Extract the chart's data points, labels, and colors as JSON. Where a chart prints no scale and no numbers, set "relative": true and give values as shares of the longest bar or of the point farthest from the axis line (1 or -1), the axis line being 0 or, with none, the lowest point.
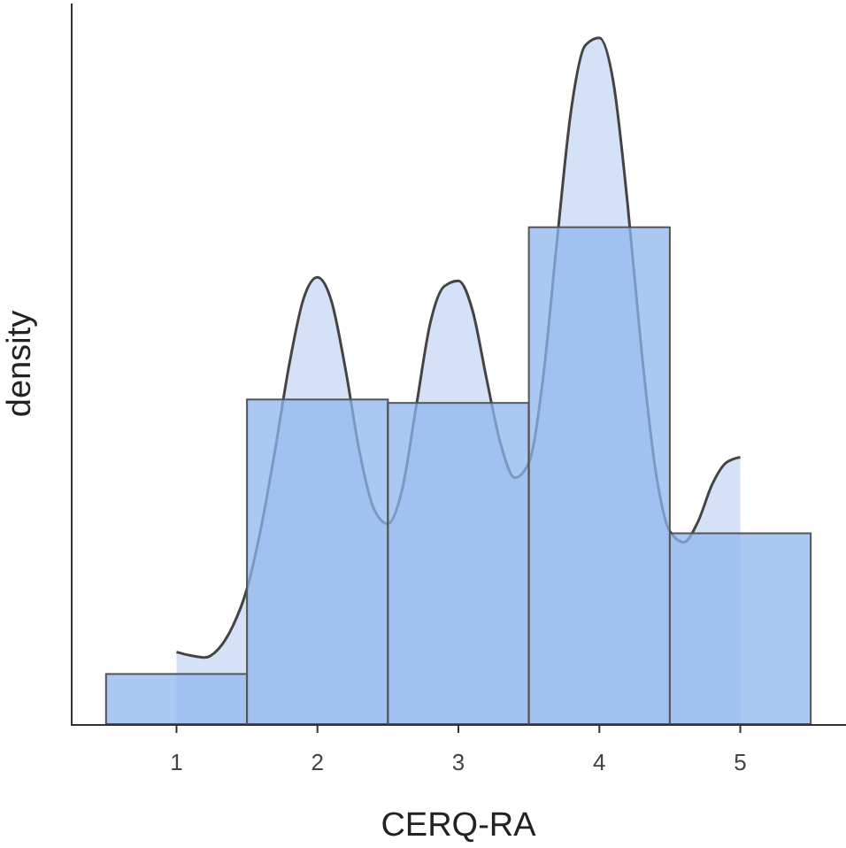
{
  "chart_data": {
    "type": "histogram",
    "relative": true,
    "xlabel": "CERQ-RA",
    "ylabel": "density",
    "xlim": [
      0.25,
      5.75
    ],
    "xticks": [
      1,
      2,
      3,
      4,
      5
    ],
    "grid": false,
    "series": [
      {
        "type": "area",
        "color": "#d5e1f6",
        "x": [
          1,
          1.1,
          1.2,
          1.3,
          1.4,
          1.5,
          1.6,
          1.7,
          1.8,
          1.9,
          2,
          2.1,
          2.2,
          2.3,
          2.4,
          2.5,
          2.6,
          2.7,
          2.8,
          2.9,
          3,
          3.1,
          3.2,
          3.3,
          3.4,
          3.5,
          3.6,
          3.7,
          3.8,
          3.9,
          4,
          4.1,
          4.2,
          4.3,
          4.4,
          4.5,
          4.6,
          4.7,
          4.8,
          4.9,
          5
        ],
        "values": [
          0.105,
          0.1,
          0.097,
          0.11,
          0.143,
          0.197,
          0.286,
          0.4,
          0.524,
          0.619,
          0.651,
          0.616,
          0.516,
          0.395,
          0.314,
          0.292,
          0.341,
          0.462,
          0.584,
          0.638,
          0.646,
          0.603,
          0.503,
          0.408,
          0.359,
          0.381,
          0.503,
          0.705,
          0.895,
          0.989,
          1,
          0.935,
          0.759,
          0.543,
          0.368,
          0.281,
          0.265,
          0.295,
          0.349,
          0.381,
          0.389
        ]
      },
      {
        "color": "#8fb6ee",
        "bins": [
          0.5,
          1.5,
          2.5,
          3.5,
          4.5,
          5.5
        ],
        "values": [
          0.073,
          0.473,
          0.468,
          0.724,
          0.278
        ]
      }
    ]
  }
}
